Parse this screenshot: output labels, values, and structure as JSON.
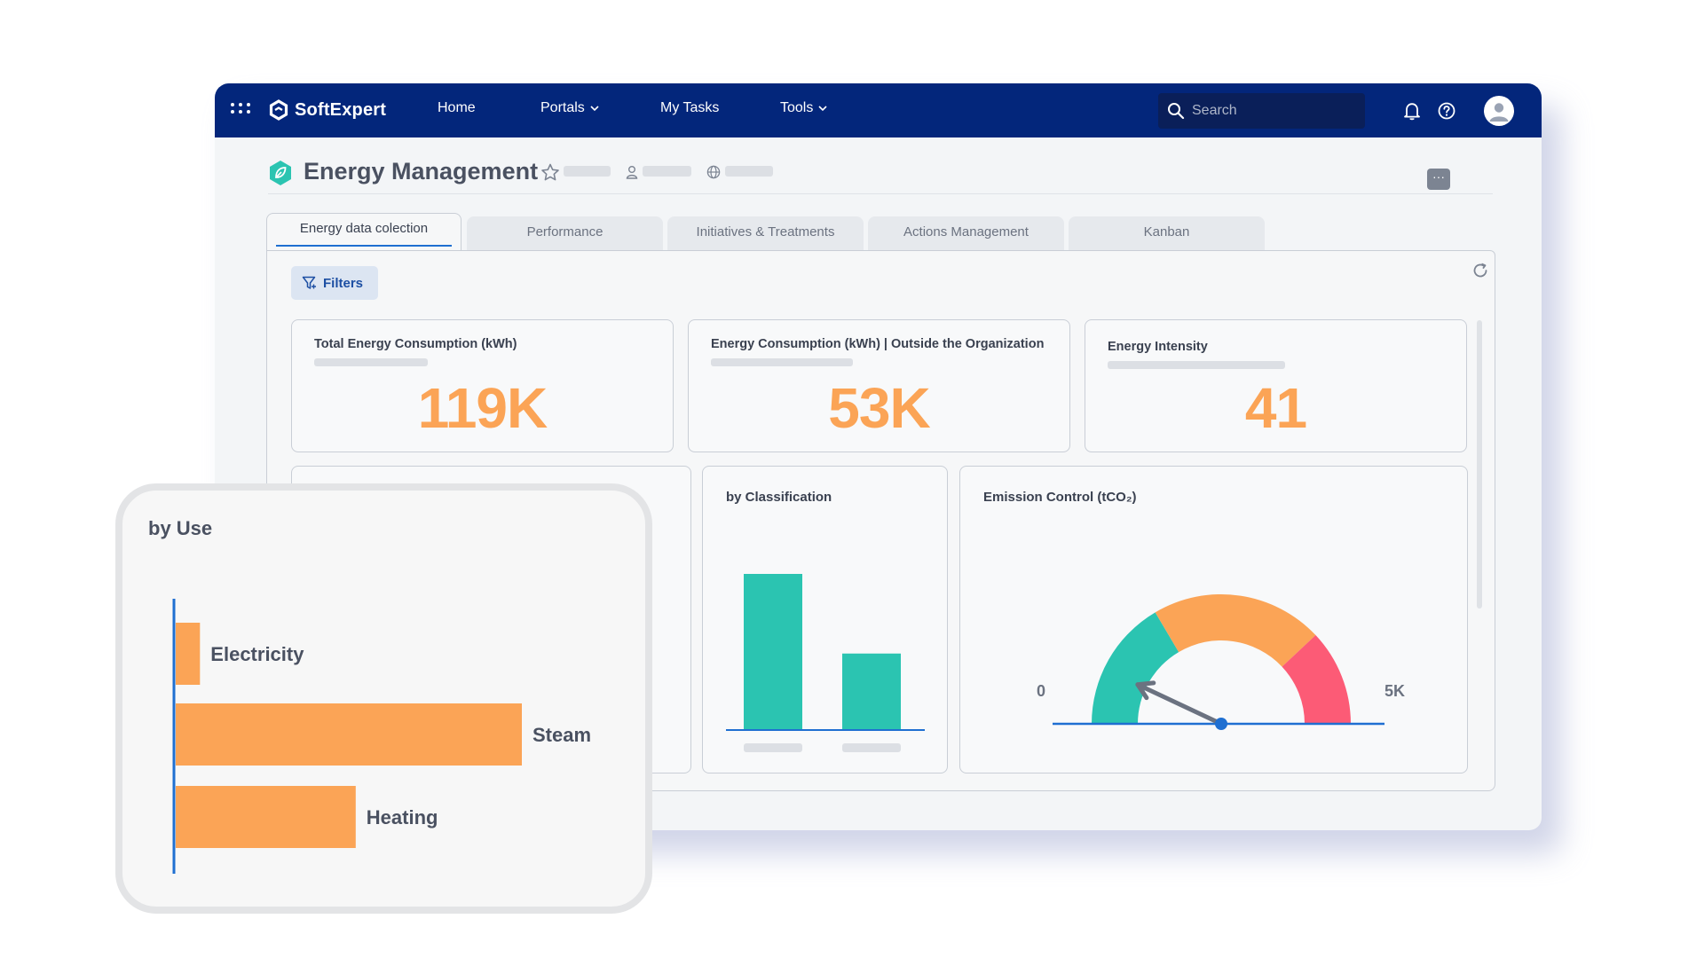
{
  "topbar": {
    "brand": "SoftExpert",
    "nav": [
      {
        "label": "Home",
        "has_dropdown": false
      },
      {
        "label": "Portals",
        "has_dropdown": true
      },
      {
        "label": "My Tasks",
        "has_dropdown": false
      },
      {
        "label": "Tools",
        "has_dropdown": true
      }
    ],
    "search_placeholder": "Search",
    "icons": [
      "apps-grid-icon",
      "bell-icon",
      "help-icon",
      "user-avatar-icon"
    ]
  },
  "header": {
    "title": "Energy Management",
    "more_label": "···"
  },
  "tabs": [
    {
      "label": "Energy data colection",
      "active": true
    },
    {
      "label": "Performance",
      "active": false
    },
    {
      "label": "Initiatives & Treatments",
      "active": false
    },
    {
      "label": "Actions Management",
      "active": false
    },
    {
      "label": "Kanban",
      "active": false
    }
  ],
  "filters_label": "Filters",
  "kpis": [
    {
      "title": "Total Energy Consumption (kWh)",
      "value": "119K"
    },
    {
      "title": "Energy Consumption (kWh) | Outside the Organization",
      "value": "53K"
    },
    {
      "title": "Energy Intensity",
      "value": "41"
    }
  ],
  "classification": {
    "title": "by Classification"
  },
  "emission": {
    "title": "Emission Control  (tCO₂)",
    "min_label": "0",
    "max_label": "5K"
  },
  "colors": {
    "navy": "#03267b",
    "accent_orange": "#fba456",
    "teal": "#2bc4b1",
    "red": "#fc5b76",
    "blue": "#1f6fd1"
  },
  "chart_data": [
    {
      "type": "bar",
      "title": "by Classification",
      "categories": [
        "",
        ""
      ],
      "values": [
        100,
        49
      ],
      "ylim": [
        0,
        100
      ]
    },
    {
      "type": "gauge",
      "title": "Emission Control  (tCO₂)",
      "min": 0,
      "max": 5000,
      "value": 700,
      "bands": [
        {
          "from": 0,
          "to": 1650,
          "color": "#2bc4b1"
        },
        {
          "from": 1650,
          "to": 3800,
          "color": "#fba456"
        },
        {
          "from": 3800,
          "to": 5000,
          "color": "#fc5b76"
        }
      ]
    },
    {
      "type": "bar",
      "orientation": "horizontal",
      "title": "by Use",
      "categories": [
        "Electricity",
        "Steam",
        "Heating"
      ],
      "values": [
        7,
        100,
        52
      ],
      "ylim": [
        0,
        100
      ]
    }
  ]
}
